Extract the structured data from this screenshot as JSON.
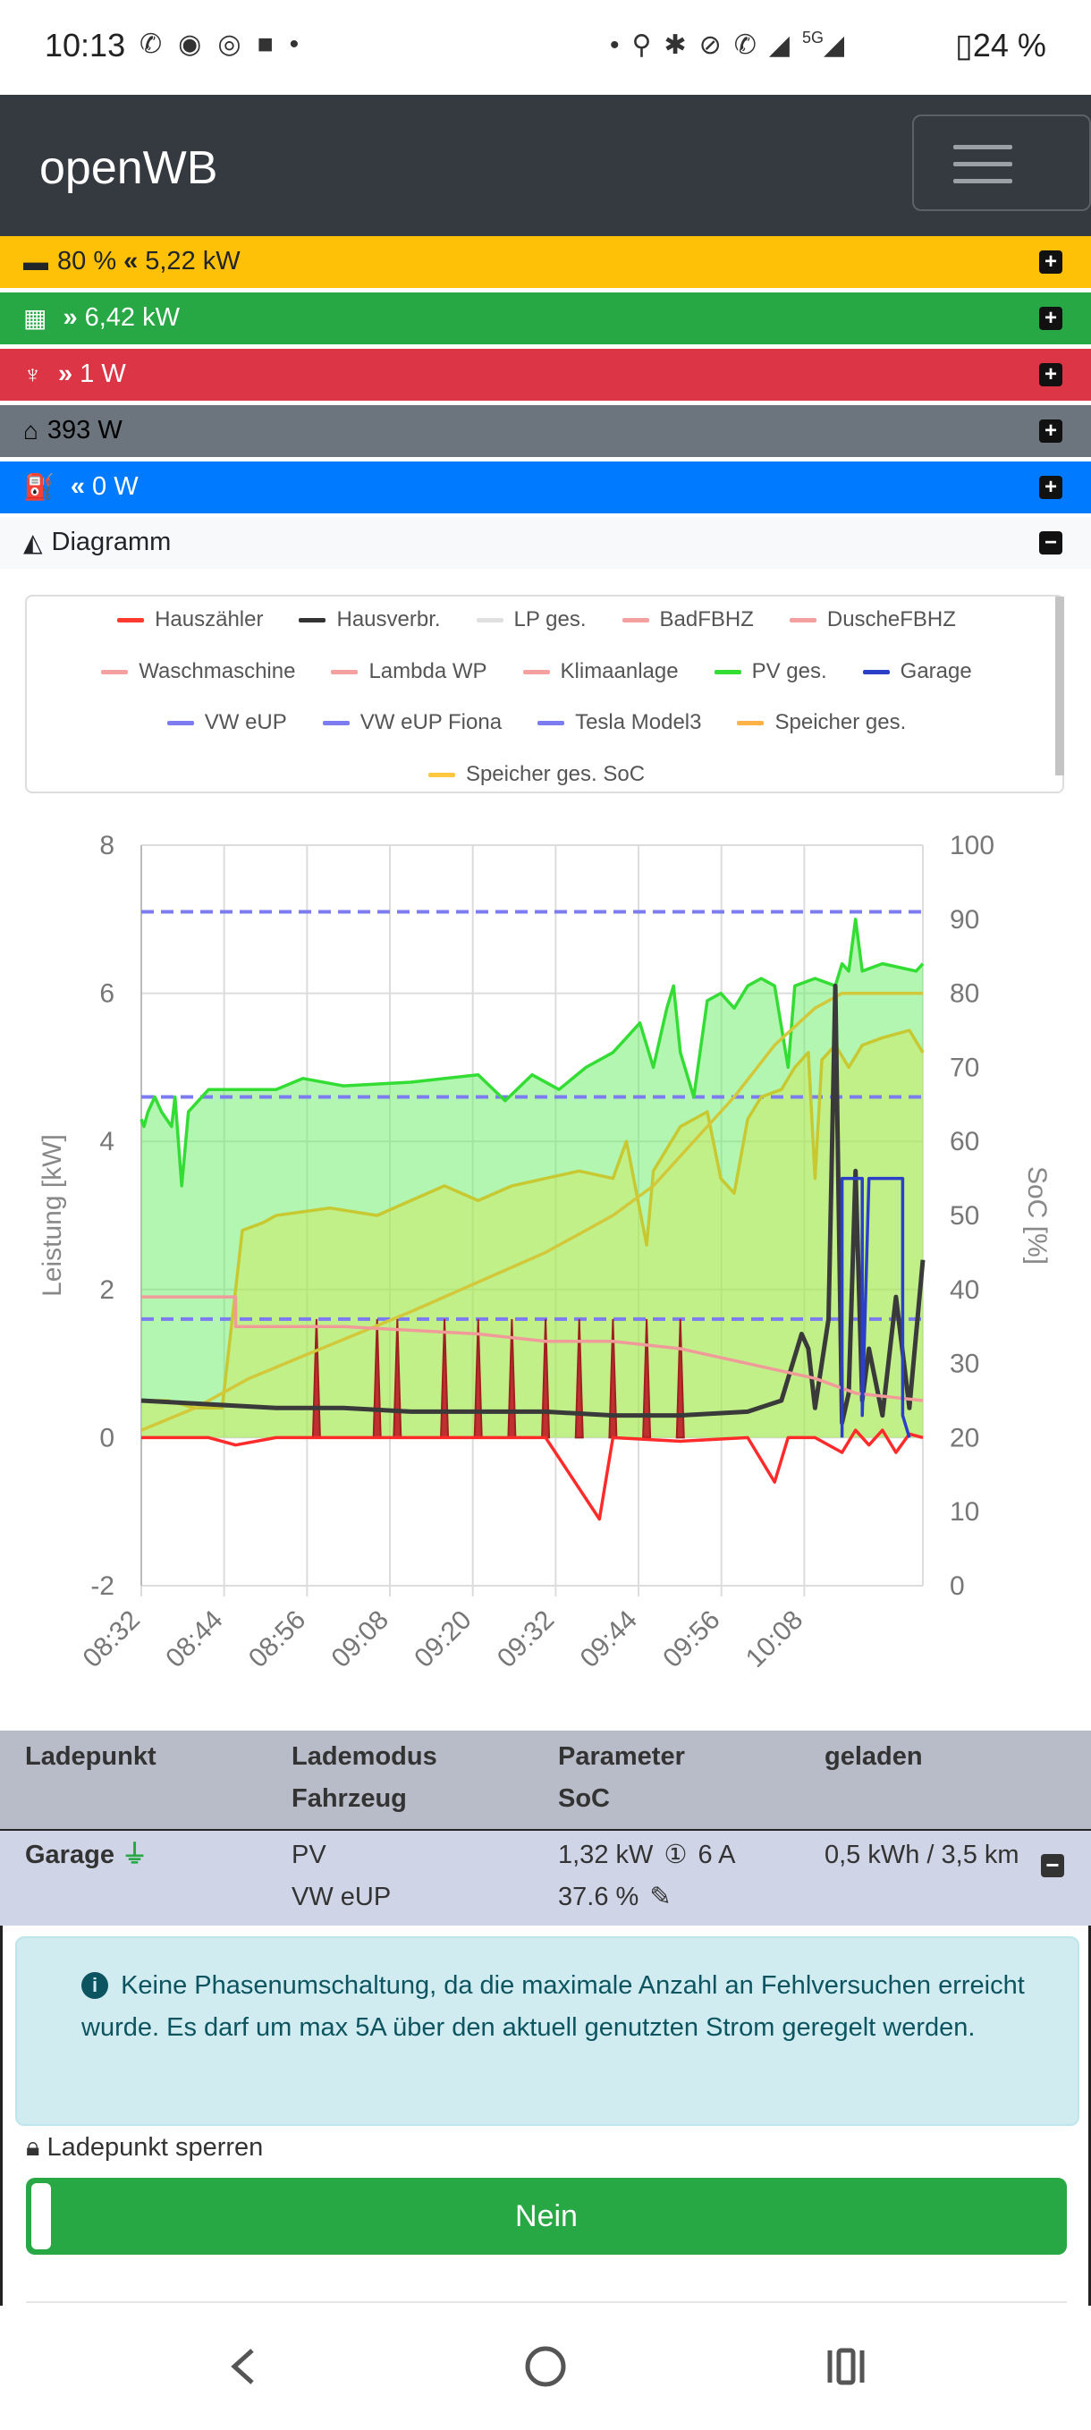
{
  "status_bar": {
    "time": "10:13",
    "battery_text": "24 %",
    "network": "5G"
  },
  "navbar": {
    "brand": "openWB",
    "menu_icon": "hamburger-icon"
  },
  "status_rows": {
    "battery": {
      "soc": "80 %",
      "power": "5,22 kW",
      "icon": "car-battery-icon",
      "direction_icon": "chevrons-left-icon"
    },
    "pv": {
      "power": "6,42 kW",
      "icon": "solar-panel-icon",
      "direction_icon": "chevrons-right-icon"
    },
    "grid": {
      "power": "1 W",
      "icon": "power-tower-icon",
      "direction_icon": "chevrons-right-icon"
    },
    "house": {
      "power": "393 W",
      "icon": "home-icon"
    },
    "chargepoints": {
      "power": "0 W",
      "icon": "charging-station-icon",
      "direction_icon": "chevrons-left-icon"
    },
    "diagram": {
      "label": "Diagramm",
      "icon": "chart-area-icon"
    }
  },
  "legend": [
    {
      "name": "Hauszähler",
      "color": "#ff3b30"
    },
    {
      "name": "Hausverbr.",
      "color": "#333333"
    },
    {
      "name": "LP ges.",
      "color": "#e0e0e0"
    },
    {
      "name": "BadFBHZ",
      "color": "#f4a0a0"
    },
    {
      "name": "DuscheFBHZ",
      "color": "#f4a0a0"
    },
    {
      "name": "Waschmaschine",
      "color": "#f4a0a0"
    },
    {
      "name": "Lambda WP",
      "color": "#f4a0a0"
    },
    {
      "name": "Klimaanlage",
      "color": "#f4a0a0"
    },
    {
      "name": "PV ges.",
      "color": "#33dd33"
    },
    {
      "name": "Garage",
      "color": "#2b3fc8"
    },
    {
      "name": "VW eUP",
      "color": "#7c7cf0"
    },
    {
      "name": "VW eUP Fiona",
      "color": "#7c7cf0"
    },
    {
      "name": "Tesla Model3",
      "color": "#7c7cf0"
    },
    {
      "name": "Speicher ges.",
      "color": "#ffb347"
    },
    {
      "name": "Speicher ges. SoC",
      "color": "#ffc640"
    }
  ],
  "chart_data": {
    "type": "line",
    "ylabel": "Leistung [kW]",
    "y2label": "SoC [%]",
    "ylim": [
      -2,
      8
    ],
    "y2lim": [
      0,
      100
    ],
    "yticks": [
      "8",
      "6",
      "4",
      "2",
      "0",
      "-2"
    ],
    "y2ticks": [
      "100",
      "90",
      "80",
      "70",
      "60",
      "50",
      "40",
      "30",
      "20",
      "10",
      "0"
    ],
    "xticks": [
      "08:32",
      "08:44",
      "08:56",
      "09:08",
      "09:20",
      "09:32",
      "09:44",
      "09:56",
      "10:08"
    ],
    "grid": true,
    "series": [
      {
        "name": "PV ges.",
        "color": "#33dd33",
        "fill": "rgba(102,238,102,0.5)",
        "points": [
          [
            0,
            4.3
          ],
          [
            0.4,
            4.2
          ],
          [
            1,
            4.4
          ],
          [
            2,
            4.6
          ],
          [
            3,
            4.4
          ],
          [
            4.5,
            4.2
          ],
          [
            5,
            4.6
          ],
          [
            6,
            3.4
          ],
          [
            7,
            4.4
          ],
          [
            10,
            4.7
          ],
          [
            20,
            4.7
          ],
          [
            24,
            4.85
          ],
          [
            30,
            4.75
          ],
          [
            40,
            4.8
          ],
          [
            50,
            4.9
          ],
          [
            54,
            4.55
          ],
          [
            58,
            4.9
          ],
          [
            62,
            4.7
          ],
          [
            66,
            5.0
          ],
          [
            70,
            5.2
          ],
          [
            72,
            5.4
          ],
          [
            74,
            5.6
          ],
          [
            76,
            5.0
          ],
          [
            78,
            5.8
          ],
          [
            79,
            6.1
          ],
          [
            80,
            5.2
          ],
          [
            82,
            4.6
          ],
          [
            84,
            5.9
          ],
          [
            86,
            6.0
          ],
          [
            88,
            5.8
          ],
          [
            90,
            6.1
          ],
          [
            92,
            6.2
          ],
          [
            94,
            6.1
          ],
          [
            96,
            5.0
          ],
          [
            97,
            6.1
          ],
          [
            100,
            6.2
          ],
          [
            103,
            6.1
          ],
          [
            104,
            6.4
          ],
          [
            105,
            6.3
          ],
          [
            106,
            7.0
          ],
          [
            107,
            6.3
          ],
          [
            110,
            6.4
          ],
          [
            115,
            6.3
          ],
          [
            116,
            6.4
          ]
        ]
      },
      {
        "name": "Speicher ges.",
        "color": "#c8c830",
        "fill": "rgba(220,230,60,0.35)",
        "points": [
          [
            0,
            0.5
          ],
          [
            4,
            0.5
          ],
          [
            8,
            0.4
          ],
          [
            12,
            0.4
          ],
          [
            15,
            2.8
          ],
          [
            18,
            2.9
          ],
          [
            20,
            3.0
          ],
          [
            28,
            3.1
          ],
          [
            35,
            3.0
          ],
          [
            40,
            3.2
          ],
          [
            45,
            3.4
          ],
          [
            50,
            3.2
          ],
          [
            55,
            3.4
          ],
          [
            60,
            3.5
          ],
          [
            65,
            3.6
          ],
          [
            70,
            3.5
          ],
          [
            72,
            4.0
          ],
          [
            75,
            2.6
          ],
          [
            76,
            3.6
          ],
          [
            80,
            4.2
          ],
          [
            84,
            4.4
          ],
          [
            86,
            3.5
          ],
          [
            88,
            3.3
          ],
          [
            90,
            4.3
          ],
          [
            92,
            4.6
          ],
          [
            95,
            4.7
          ],
          [
            97,
            5.0
          ],
          [
            99,
            5.2
          ],
          [
            100,
            3.5
          ],
          [
            101,
            5.1
          ],
          [
            103,
            5.3
          ],
          [
            105,
            5.0
          ],
          [
            107,
            5.3
          ],
          [
            110,
            5.4
          ],
          [
            114,
            5.5
          ],
          [
            116,
            5.2
          ]
        ]
      },
      {
        "name": "Speicher ges. SoC",
        "color": "#d2c83a",
        "axis": "right",
        "points": [
          [
            0,
            21
          ],
          [
            8,
            24
          ],
          [
            16,
            28
          ],
          [
            24,
            31
          ],
          [
            32,
            34
          ],
          [
            40,
            37
          ],
          [
            50,
            41
          ],
          [
            60,
            45
          ],
          [
            70,
            50
          ],
          [
            76,
            54
          ],
          [
            82,
            60
          ],
          [
            88,
            66
          ],
          [
            94,
            73
          ],
          [
            100,
            78
          ],
          [
            104,
            80
          ],
          [
            110,
            80
          ],
          [
            116,
            80
          ]
        ]
      },
      {
        "name": "Hauszähler",
        "color": "#ff2a2a",
        "points": [
          [
            0,
            0
          ],
          [
            10,
            0
          ],
          [
            14,
            -0.1
          ],
          [
            20,
            0
          ],
          [
            40,
            0
          ],
          [
            60,
            0
          ],
          [
            68,
            -1.1
          ],
          [
            70,
            0
          ],
          [
            80,
            -0.05
          ],
          [
            90,
            0
          ],
          [
            94,
            -0.6
          ],
          [
            96,
            0
          ],
          [
            100,
            0
          ],
          [
            104,
            -0.2
          ],
          [
            106,
            0.1
          ],
          [
            108,
            -0.1
          ],
          [
            110,
            0.1
          ],
          [
            112,
            -0.2
          ],
          [
            114,
            0.05
          ],
          [
            116,
            0
          ]
        ]
      },
      {
        "name": "Hausverbr.",
        "color": "#3a3a3a",
        "points": [
          [
            0,
            0.5
          ],
          [
            10,
            0.45
          ],
          [
            20,
            0.4
          ],
          [
            30,
            0.4
          ],
          [
            40,
            0.35
          ],
          [
            50,
            0.35
          ],
          [
            60,
            0.35
          ],
          [
            70,
            0.3
          ],
          [
            80,
            0.3
          ],
          [
            90,
            0.35
          ],
          [
            95,
            0.5
          ],
          [
            98,
            1.4
          ],
          [
            99,
            1.2
          ],
          [
            100,
            0.4
          ],
          [
            102,
            1.6
          ],
          [
            103,
            6.1
          ],
          [
            104,
            0.2
          ],
          [
            105,
            0.6
          ],
          [
            106,
            3.6
          ],
          [
            107,
            0.5
          ],
          [
            108,
            1.2
          ],
          [
            110,
            0.3
          ],
          [
            112,
            1.9
          ],
          [
            114,
            0.4
          ],
          [
            116,
            2.4
          ]
        ]
      },
      {
        "name": "Klimaanlage",
        "color": "#f09a9a",
        "points": [
          [
            0,
            1.9
          ],
          [
            14,
            1.9
          ],
          [
            14,
            1.5
          ],
          [
            30,
            1.5
          ],
          [
            50,
            1.4
          ],
          [
            60,
            1.3
          ],
          [
            70,
            1.3
          ],
          [
            80,
            1.2
          ],
          [
            90,
            1.0
          ],
          [
            100,
            0.8
          ],
          [
            106,
            0.6
          ],
          [
            116,
            0.5
          ]
        ]
      },
      {
        "name": "Garage",
        "color": "#2b3fc8",
        "points": [
          [
            104,
            0
          ],
          [
            104,
            3.5
          ],
          [
            107,
            3.5
          ],
          [
            107,
            0.3
          ],
          [
            108,
            3.5
          ],
          [
            113,
            3.5
          ],
          [
            113,
            0.3
          ],
          [
            114,
            0
          ]
        ]
      }
    ],
    "dashed_levels": [
      {
        "series": "VW eUP",
        "value": 7.1
      },
      {
        "series": "VW eUP Fiona",
        "value": 4.6
      },
      {
        "series": "Tesla Model3",
        "value": 1.6
      }
    ],
    "spikes": [
      {
        "series": "Lambda WP",
        "x": [
          26,
          35,
          38,
          45,
          50,
          55,
          60,
          65,
          70,
          75,
          80
        ]
      }
    ]
  },
  "lp_table": {
    "headers": [
      "Ladepunkt",
      "Lademodus",
      "Fahrzeug",
      "Parameter",
      "SoC",
      "geladen"
    ],
    "row": {
      "name": "Garage",
      "mode": "PV",
      "vehicle": "VW eUP",
      "power": "1,32 kW",
      "current": "6 A",
      "soc": "37.6 %",
      "charged": "0,5 kWh / 3,5 km"
    }
  },
  "alert": {
    "text": "Keine Phasenumschaltung, da die maximale Anzahl an Fehlversuchen erreicht wurde. Es darf um max 5A über den aktuell genutzten Strom geregelt werden."
  },
  "lock": {
    "label": "Ladepunkt sperren",
    "button": "Nein"
  }
}
